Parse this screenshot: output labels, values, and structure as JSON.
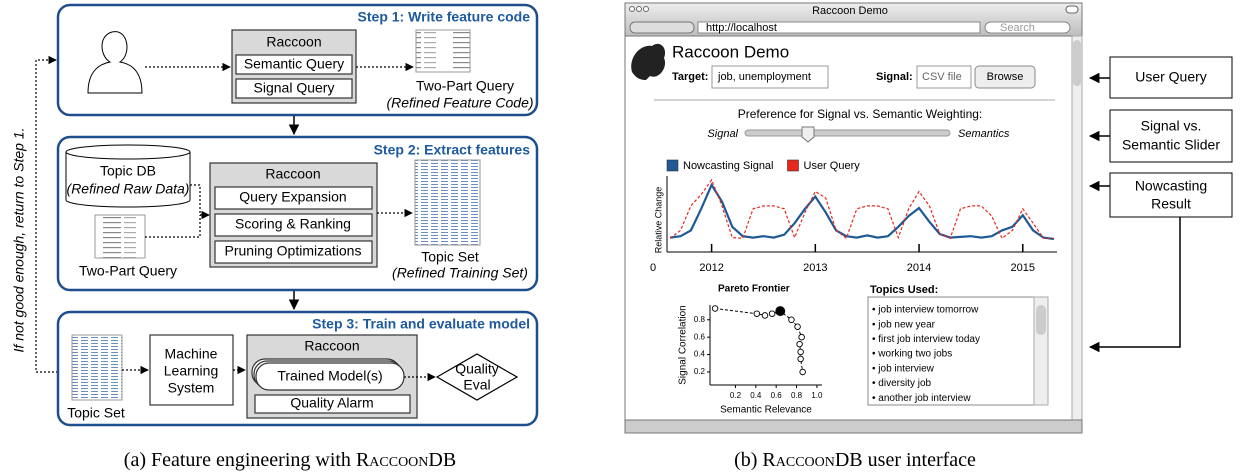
{
  "diagram": {
    "side_note": "If not good enough, return to Step 1.",
    "step1": {
      "title": "Step 1: Write feature code",
      "raccoon": {
        "title": "Raccoon",
        "items": [
          "Semantic Query",
          "Signal Query"
        ]
      },
      "output": {
        "label": "Two-Part Query",
        "sublabel": "(Refined Feature Code)"
      }
    },
    "step2": {
      "title": "Step 2: Extract features",
      "topic_db": {
        "label": "Topic DB",
        "sublabel": "(Refined Raw Data)"
      },
      "input": "Two-Part Query",
      "raccoon": {
        "title": "Raccoon",
        "items": [
          "Query Expansion",
          "Scoring & Ranking",
          "Pruning Optimizations"
        ]
      },
      "output": {
        "label": "Topic Set",
        "sublabel": "(Refined Training Set)"
      }
    },
    "step3": {
      "title": "Step 3: Train and evaluate model",
      "input": "Topic Set",
      "ml": [
        "Machine",
        "Learning",
        "System"
      ],
      "raccoon": {
        "title": "Raccoon",
        "items": [
          "Trained Model(s)",
          "Quality Alarm"
        ]
      },
      "eval": [
        "Quality",
        "Eval"
      ]
    },
    "caption": {
      "prefix": "(a) Feature engineering with",
      "name": "RaccoonDB"
    }
  },
  "ui": {
    "window_title": "Raccoon Demo",
    "url": "http://localhost",
    "search": "Search",
    "app_title": "Raccoon Demo",
    "target_label": "Target:",
    "target_value": "job, unemployment",
    "signal_label": "Signal:",
    "signal_value": "CSV file",
    "browse": "Browse",
    "slider": {
      "title": "Preference for Signal vs. Semantic Weighting:",
      "left": "Signal",
      "right": "Semantics"
    },
    "topics": {
      "title": "Topics Used:",
      "items": [
        "• job interview tomorrow",
        "• job new year",
        "• first job interview today",
        "• working two jobs",
        "• job interview",
        "• diversity job",
        "• another job interview"
      ]
    }
  },
  "chart_data": [
    {
      "type": "line",
      "ylabel": "Relative Change",
      "legend": "top-left",
      "x": [
        2011.6,
        2011.7,
        2011.8,
        2011.9,
        2012.0,
        2012.1,
        2012.2,
        2012.3,
        2012.4,
        2012.5,
        2012.6,
        2012.7,
        2012.8,
        2012.9,
        2013.0,
        2013.1,
        2013.2,
        2013.3,
        2013.4,
        2013.5,
        2013.6,
        2013.7,
        2013.8,
        2013.9,
        2014.0,
        2014.1,
        2014.2,
        2014.3,
        2014.4,
        2014.5,
        2014.6,
        2014.7,
        2014.8,
        2014.9,
        2015.0,
        2015.1,
        2015.2,
        2015.3
      ],
      "series": [
        {
          "name": "Nowcasting Signal",
          "color": "#1f5a96",
          "style": "solid",
          "values": [
            0.2,
            0.22,
            0.3,
            0.6,
            0.93,
            0.7,
            0.35,
            0.22,
            0.2,
            0.22,
            0.2,
            0.24,
            0.4,
            0.6,
            0.77,
            0.55,
            0.3,
            0.22,
            0.2,
            0.23,
            0.2,
            0.22,
            0.35,
            0.5,
            0.61,
            0.42,
            0.25,
            0.2,
            0.21,
            0.22,
            0.2,
            0.22,
            0.3,
            0.35,
            0.51,
            0.3,
            0.2,
            0.18
          ]
        },
        {
          "name": "User Query",
          "color": "#e8281e",
          "style": "dashed",
          "values": [
            0.19,
            0.3,
            0.64,
            0.8,
            1.0,
            0.64,
            0.2,
            0.19,
            0.6,
            0.64,
            0.64,
            0.6,
            0.2,
            0.55,
            0.84,
            0.75,
            0.3,
            0.19,
            0.6,
            0.64,
            0.64,
            0.6,
            0.2,
            0.6,
            0.84,
            0.64,
            0.25,
            0.19,
            0.6,
            0.64,
            0.64,
            0.5,
            0.19,
            0.3,
            0.6,
            0.4,
            0.19,
            0.19
          ]
        }
      ],
      "xlim": [
        2011.57,
        2015.33
      ],
      "xticks": [
        2012,
        2013,
        2014,
        2015
      ],
      "ylim": [
        0,
        1
      ],
      "yticks": [
        0
      ]
    },
    {
      "type": "scatter",
      "title": "Pareto Frontier",
      "xlabel": "Semantic Relevance",
      "ylabel": "Signal Correlation",
      "x": [
        0.0,
        0.41,
        0.49,
        0.56,
        0.64,
        0.75,
        0.81,
        0.85,
        0.83,
        0.84,
        0.84,
        0.86
      ],
      "values": [
        0.93,
        0.87,
        0.85,
        0.87,
        0.9,
        0.8,
        0.72,
        0.6,
        0.52,
        0.43,
        0.35,
        0.2
      ],
      "highlight_index": 4,
      "xlim": [
        -0.05,
        1.05
      ],
      "xticks": [
        0.2,
        0.4,
        0.6,
        0.8,
        {
          "value": 1,
          "label": "1.0"
        }
      ],
      "ylim": [
        0.05,
        0.97
      ],
      "yticks": [
        0.2,
        0.4,
        0.6,
        0.8
      ]
    }
  ],
  "annotations": {
    "user_query": "User Query",
    "slider": [
      "Signal vs.",
      "Semantic Slider"
    ],
    "nowcasting": [
      "Nowcasting",
      "Result"
    ]
  },
  "caption_b": {
    "prefix": "(b)",
    "name": "RaccoonDB",
    "suffix": "user interface"
  }
}
